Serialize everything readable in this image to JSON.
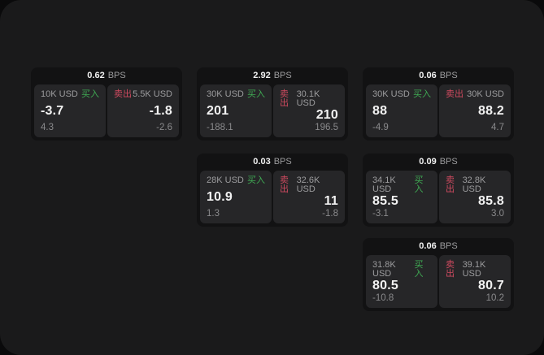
{
  "theme": {
    "outer_bg": "#0a0a0b",
    "panel_bg": "#1a1a1b",
    "card_bg": "#121213",
    "tile_bg": "#262628",
    "buy_color": "#3fa953",
    "sell_color": "#cf4a5f",
    "value_color": "#f2f2f2",
    "muted_color": "#9c9c9e",
    "sub_color": "#8a8a8c"
  },
  "labels": {
    "bps": "BPS",
    "buy": "买入",
    "sell": "卖出"
  },
  "cards": [
    {
      "bps": "0.62",
      "buy": {
        "size": "10K USD",
        "value": "-3.7",
        "sub": "4.3"
      },
      "sell": {
        "size": "5.5K USD",
        "value": "-1.8",
        "sub": "-2.6"
      }
    },
    {
      "bps": "2.92",
      "buy": {
        "size": "30K USD",
        "value": "201",
        "sub": "-188.1"
      },
      "sell": {
        "size": "30.1K USD",
        "value": "210",
        "sub": "196.5"
      }
    },
    {
      "bps": "0.06",
      "buy": {
        "size": "30K USD",
        "value": "88",
        "sub": "-4.9"
      },
      "sell": {
        "size": "30K USD",
        "value": "88.2",
        "sub": "4.7"
      }
    },
    {
      "bps": "0.03",
      "buy": {
        "size": "28K USD",
        "value": "10.9",
        "sub": "1.3"
      },
      "sell": {
        "size": "32.6K USD",
        "value": "11",
        "sub": "-1.8"
      }
    },
    {
      "bps": "0.09",
      "buy": {
        "size": "34.1K USD",
        "value": "85.5",
        "sub": "-3.1"
      },
      "sell": {
        "size": "32.8K USD",
        "value": "85.8",
        "sub": "3.0"
      }
    },
    {
      "bps": "0.06",
      "buy": {
        "size": "31.8K USD",
        "value": "80.5",
        "sub": "-10.8"
      },
      "sell": {
        "size": "39.1K USD",
        "value": "80.7",
        "sub": "10.2"
      }
    }
  ]
}
